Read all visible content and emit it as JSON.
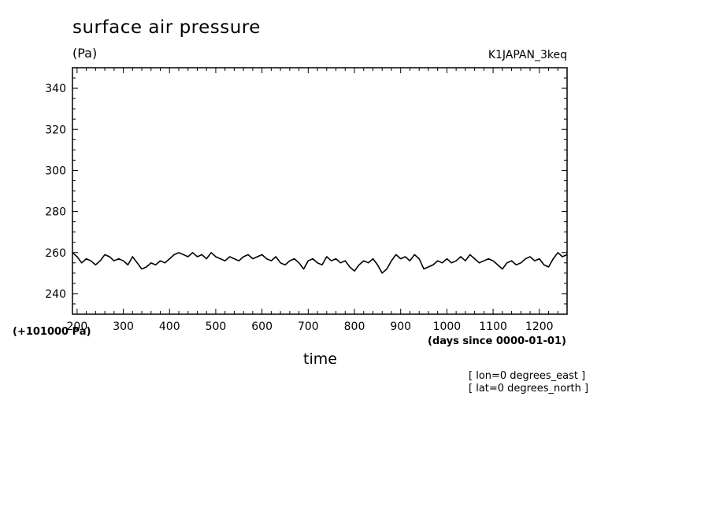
{
  "chart_data": {
    "type": "line",
    "title": "surface air pressure",
    "units": "(Pa)",
    "dataset": "K1JAPAN_3keq",
    "xlabel": "time",
    "xunits": "(days since 0000-01-01)",
    "y_offset_label": "(+101000 Pa)",
    "annotations": [
      "[ lon=0 degrees_east ]",
      "[ lat=0 degrees_north ]"
    ],
    "xlim": [
      190,
      1260
    ],
    "ylim": [
      230,
      350
    ],
    "x_ticks": [
      200,
      300,
      400,
      500,
      600,
      700,
      800,
      900,
      1000,
      1100,
      1200
    ],
    "y_ticks": [
      240,
      260,
      280,
      300,
      320,
      340
    ],
    "grid": false,
    "series": [
      {
        "name": "surface air pressure",
        "color": "#000000",
        "x": [
          190,
          200,
          210,
          220,
          230,
          240,
          250,
          260,
          270,
          280,
          290,
          300,
          310,
          320,
          330,
          340,
          350,
          360,
          370,
          380,
          390,
          400,
          410,
          420,
          430,
          440,
          450,
          460,
          470,
          480,
          490,
          500,
          510,
          520,
          530,
          540,
          550,
          560,
          570,
          580,
          590,
          600,
          610,
          620,
          630,
          640,
          650,
          660,
          670,
          680,
          690,
          700,
          710,
          720,
          730,
          740,
          750,
          760,
          770,
          780,
          790,
          800,
          810,
          820,
          830,
          840,
          850,
          860,
          870,
          880,
          890,
          900,
          910,
          920,
          930,
          940,
          950,
          960,
          970,
          980,
          990,
          1000,
          1010,
          1020,
          1030,
          1040,
          1050,
          1060,
          1070,
          1080,
          1090,
          1100,
          1110,
          1120,
          1130,
          1140,
          1150,
          1160,
          1170,
          1180,
          1190,
          1200,
          1210,
          1220,
          1230,
          1240,
          1250,
          1260
        ],
        "values": [
          260,
          258,
          255,
          257,
          256,
          254,
          256,
          259,
          258,
          256,
          257,
          256,
          254,
          258,
          255,
          252,
          253,
          255,
          254,
          256,
          255,
          257,
          259,
          260,
          259,
          258,
          260,
          258,
          259,
          257,
          260,
          258,
          257,
          256,
          258,
          257,
          256,
          258,
          259,
          257,
          258,
          259,
          257,
          256,
          258,
          255,
          254,
          256,
          257,
          255,
          252,
          256,
          257,
          255,
          254,
          258,
          256,
          257,
          255,
          256,
          253,
          251,
          254,
          256,
          255,
          257,
          254,
          250,
          252,
          256,
          259,
          257,
          258,
          256,
          259,
          257,
          252,
          253,
          254,
          256,
          255,
          257,
          255,
          256,
          258,
          256,
          259,
          257,
          255,
          256,
          257,
          256,
          254,
          252,
          255,
          256,
          254,
          255,
          257,
          258,
          256,
          257,
          254,
          253,
          257,
          260,
          258,
          259
        ]
      }
    ]
  }
}
